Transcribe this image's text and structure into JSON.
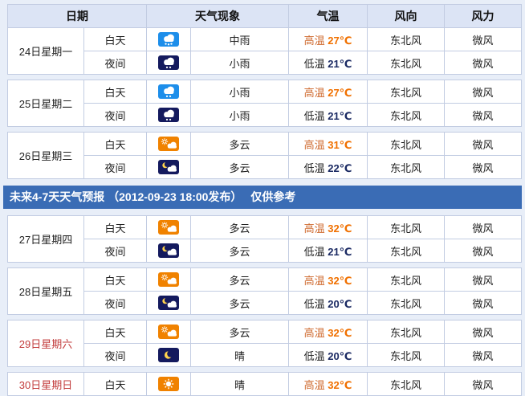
{
  "band": {
    "text": "未来4-7天天气预报 （2012-09-23 18:00发布）　 仅供参考",
    "position_after_day_index": 2,
    "bg_color": "#3a6cb5",
    "text_color": "#ffffff"
  },
  "table_headers": {
    "date": "日期",
    "weather": "天气现象",
    "temp": "气温",
    "wind_dir": "风向",
    "wind_force": "风力"
  },
  "columns": {
    "widths": [
      95,
      78,
      55,
      122,
      98,
      96,
      96
    ]
  },
  "colors": {
    "page_bg": "#e8eef8",
    "header_bg": "#dce4f5",
    "outer_border": "#9cabcf",
    "inner_border": "#c2cce2",
    "high_temp_label": "#cf6a2f",
    "high_temp_value": "#f07000",
    "low_temp_label": "#222222",
    "low_temp_value": "#1b2a63",
    "weekend_date": "#c23b3b",
    "day_rain_icon_bg": "#1d8eea",
    "night_icon_bg": "#141a5e",
    "day_sun_icon_bg": "#f08200",
    "moon_yellow": "#ffd34d"
  },
  "icons": {
    "moderate-rain-day": {
      "bg": "#1d8eea",
      "glyph": "cloud-rain",
      "drops": 3
    },
    "light-rain-day": {
      "bg": "#1d8eea",
      "glyph": "cloud-rain",
      "drops": 2
    },
    "light-rain-night": {
      "bg": "#141a5e",
      "glyph": "cloud-rain",
      "drops": 2
    },
    "cloudy-day": {
      "bg": "#f08200",
      "glyph": "sun-cloud"
    },
    "cloudy-night": {
      "bg": "#141a5e",
      "glyph": "moon-cloud"
    },
    "clear-night": {
      "bg": "#141a5e",
      "glyph": "moon"
    },
    "clear-day": {
      "bg": "#f08200",
      "glyph": "sun"
    }
  },
  "days": [
    {
      "date": "24日星期一",
      "weekend": false,
      "rows": [
        {
          "period": "白天",
          "icon": "moderate-rain-day",
          "desc": "中雨",
          "temp_label": "高温",
          "temp_value": "27℃",
          "temp_type": "high",
          "wind_dir": "东北风",
          "wind_force": "微风"
        },
        {
          "period": "夜间",
          "icon": "light-rain-night",
          "desc": "小雨",
          "temp_label": "低温",
          "temp_value": "21℃",
          "temp_type": "low",
          "wind_dir": "东北风",
          "wind_force": "微风"
        }
      ]
    },
    {
      "date": "25日星期二",
      "weekend": false,
      "rows": [
        {
          "period": "白天",
          "icon": "light-rain-day",
          "desc": "小雨",
          "temp_label": "高温",
          "temp_value": "27℃",
          "temp_type": "high",
          "wind_dir": "东北风",
          "wind_force": "微风"
        },
        {
          "period": "夜间",
          "icon": "light-rain-night",
          "desc": "小雨",
          "temp_label": "低温",
          "temp_value": "21℃",
          "temp_type": "low",
          "wind_dir": "东北风",
          "wind_force": "微风"
        }
      ]
    },
    {
      "date": "26日星期三",
      "weekend": false,
      "rows": [
        {
          "period": "白天",
          "icon": "cloudy-day",
          "desc": "多云",
          "temp_label": "高温",
          "temp_value": "31℃",
          "temp_type": "high",
          "wind_dir": "东北风",
          "wind_force": "微风"
        },
        {
          "period": "夜间",
          "icon": "cloudy-night",
          "desc": "多云",
          "temp_label": "低温",
          "temp_value": "22℃",
          "temp_type": "low",
          "wind_dir": "东北风",
          "wind_force": "微风"
        }
      ]
    },
    {
      "date": "27日星期四",
      "weekend": false,
      "rows": [
        {
          "period": "白天",
          "icon": "cloudy-day",
          "desc": "多云",
          "temp_label": "高温",
          "temp_value": "32℃",
          "temp_type": "high",
          "wind_dir": "东北风",
          "wind_force": "微风"
        },
        {
          "period": "夜间",
          "icon": "cloudy-night",
          "desc": "多云",
          "temp_label": "低温",
          "temp_value": "21℃",
          "temp_type": "low",
          "wind_dir": "东北风",
          "wind_force": "微风"
        }
      ]
    },
    {
      "date": "28日星期五",
      "weekend": false,
      "rows": [
        {
          "period": "白天",
          "icon": "cloudy-day",
          "desc": "多云",
          "temp_label": "高温",
          "temp_value": "32℃",
          "temp_type": "high",
          "wind_dir": "东北风",
          "wind_force": "微风"
        },
        {
          "period": "夜间",
          "icon": "cloudy-night",
          "desc": "多云",
          "temp_label": "低温",
          "temp_value": "20℃",
          "temp_type": "low",
          "wind_dir": "东北风",
          "wind_force": "微风"
        }
      ]
    },
    {
      "date": "29日星期六",
      "weekend": true,
      "rows": [
        {
          "period": "白天",
          "icon": "cloudy-day",
          "desc": "多云",
          "temp_label": "高温",
          "temp_value": "32℃",
          "temp_type": "high",
          "wind_dir": "东北风",
          "wind_force": "微风"
        },
        {
          "period": "夜间",
          "icon": "clear-night",
          "desc": "晴",
          "temp_label": "低温",
          "temp_value": "20℃",
          "temp_type": "low",
          "wind_dir": "东北风",
          "wind_force": "微风"
        }
      ]
    },
    {
      "date": "30日星期日",
      "weekend": true,
      "rows": [
        {
          "period": "白天",
          "icon": "clear-day",
          "desc": "晴",
          "temp_label": "高温",
          "temp_value": "32℃",
          "temp_type": "high",
          "wind_dir": "东北风",
          "wind_force": "微风"
        }
      ]
    }
  ]
}
